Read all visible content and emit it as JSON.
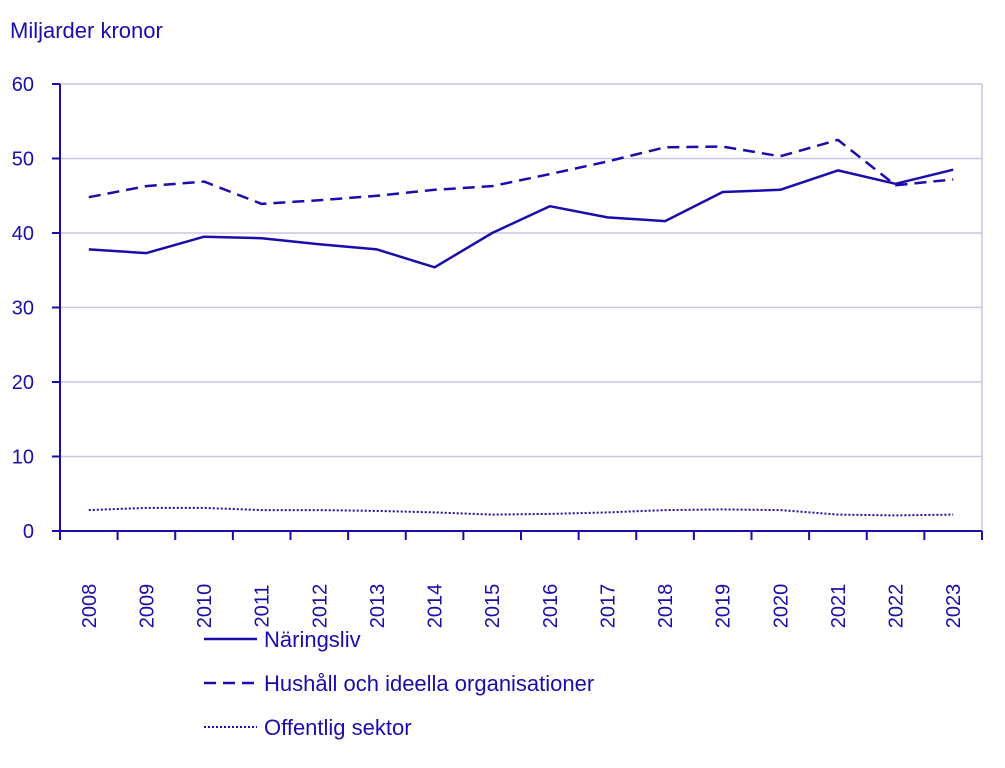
{
  "chart_data": {
    "type": "line",
    "title": "",
    "ylabel": "Miljarder kronor",
    "xlabel": "",
    "ylim": [
      0,
      60
    ],
    "yticks": [
      0,
      10,
      20,
      30,
      40,
      50,
      60
    ],
    "ytick_labels": [
      "0",
      "10",
      "20",
      "30",
      "40",
      "50",
      "60"
    ],
    "categories": [
      "2008",
      "2009",
      "2010",
      "2011",
      "2012",
      "2013",
      "2014",
      "2015",
      "2016",
      "2017",
      "2018",
      "2019",
      "2020",
      "2021",
      "2022",
      "2023"
    ],
    "grid": true,
    "legend_position": "bottom",
    "series": [
      {
        "name": "Näringsliv",
        "style": "solid",
        "values": [
          37.8,
          37.3,
          39.5,
          39.3,
          38.5,
          37.8,
          35.4,
          40.0,
          43.6,
          42.1,
          41.6,
          45.5,
          45.8,
          48.4,
          46.6,
          48.5
        ]
      },
      {
        "name": "Hushåll och ideella organisationer",
        "style": "dashed",
        "values": [
          44.8,
          46.3,
          46.9,
          43.9,
          44.4,
          45.0,
          45.8,
          46.3,
          47.9,
          49.6,
          51.5,
          51.6,
          50.3,
          52.5,
          46.4,
          47.2
        ]
      },
      {
        "name": "Offentlig sektor",
        "style": "dotted",
        "values": [
          2.8,
          3.1,
          3.1,
          2.8,
          2.8,
          2.7,
          2.5,
          2.2,
          2.3,
          2.5,
          2.8,
          2.9,
          2.8,
          2.2,
          2.1,
          2.2
        ]
      }
    ]
  },
  "colors": {
    "line": "#1a0dab",
    "grid": "#c9c6e6",
    "axis": "#1a0dab"
  }
}
